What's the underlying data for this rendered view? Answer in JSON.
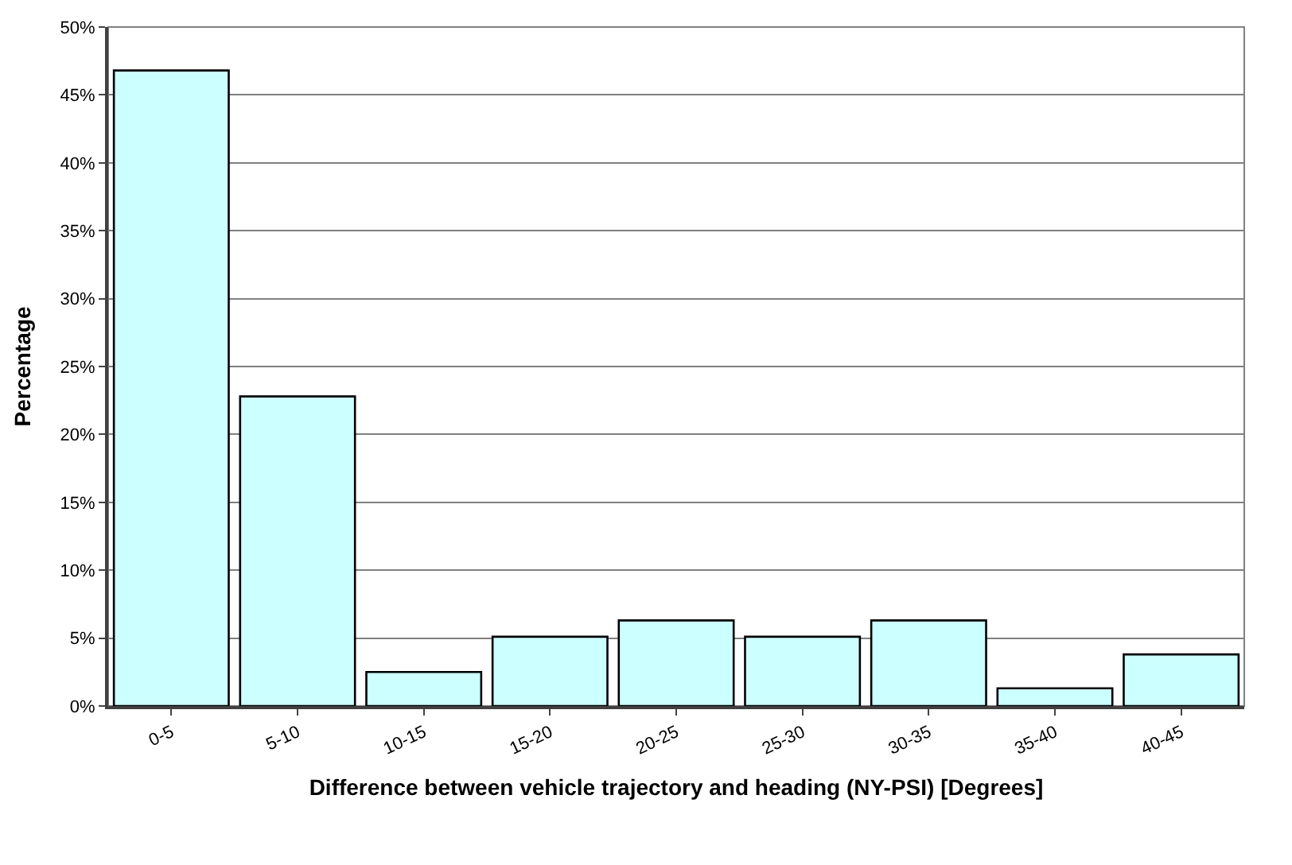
{
  "chart_data": {
    "type": "bar",
    "xlabel": "Difference between vehicle trajectory and heading (NY-PSI) [Degrees]",
    "ylabel": "Percentage",
    "categories": [
      "0-5",
      "5-10",
      "10-15",
      "15-20",
      "20-25",
      "25-30",
      "30-35",
      "35-40",
      "40-45"
    ],
    "values": [
      46.8,
      22.8,
      2.5,
      5.1,
      6.3,
      5.1,
      6.3,
      1.3,
      3.8
    ],
    "color": "#ccffff",
    "ylim": [
      0,
      50
    ],
    "yticks": [
      {
        "value": 0,
        "label": "0%"
      },
      {
        "value": 5,
        "label": "5%"
      },
      {
        "value": 10,
        "label": "10%"
      },
      {
        "value": 15,
        "label": "15%"
      },
      {
        "value": 20,
        "label": "20%"
      },
      {
        "value": 25,
        "label": "25%"
      },
      {
        "value": 30,
        "label": "30%"
      },
      {
        "value": 35,
        "label": "35%"
      },
      {
        "value": 40,
        "label": "40%"
      },
      {
        "value": 45,
        "label": "45%"
      },
      {
        "value": 50,
        "label": "50%"
      }
    ],
    "grid": "y"
  }
}
